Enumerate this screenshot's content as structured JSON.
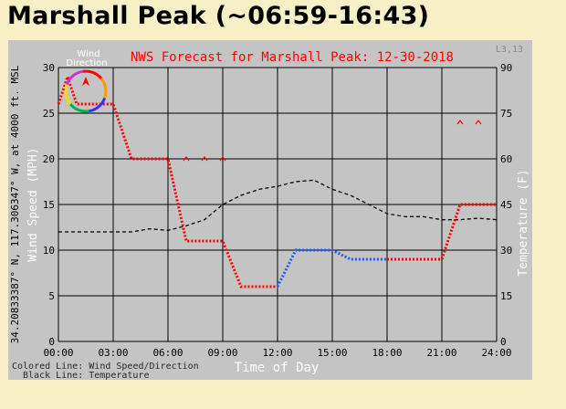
{
  "page": {
    "title": "Marshall Peak (~06:59-16:43)"
  },
  "chart_data": {
    "type": "line",
    "title": "NWS Forecast for Marshall Peak: 12-30-2018",
    "corner_label": "L3,13",
    "xlabel": "Time of Day",
    "ylabel_left": "Wind Speed (MPH)",
    "ylabel_location": "34.20833387° N, 117.306347° W, at 4000 ft. MSL",
    "ylabel_right": "Temperature (F)",
    "xlim": [
      0,
      24
    ],
    "ylim_left": [
      0,
      30
    ],
    "ylim_right": [
      0,
      90
    ],
    "x_ticks": [
      "00:00",
      "03:00",
      "06:00",
      "09:00",
      "12:00",
      "15:00",
      "18:00",
      "21:00",
      "24:00"
    ],
    "y_ticks_left": [
      "0",
      "5",
      "10",
      "15",
      "20",
      "25",
      "30"
    ],
    "y_ticks_right": [
      "0",
      "15",
      "30",
      "45",
      "60",
      "75",
      "90"
    ],
    "grid": true,
    "legend_lines": [
      "Colored Line: Wind Speed/Direction",
      "Black Line: Temperature"
    ],
    "wind_direction_label": [
      "Wind",
      "Direction"
    ],
    "series": [
      {
        "name": "Wind Speed/Direction",
        "segments": [
          {
            "color": "#ff0000",
            "x": [
              0,
              0.5,
              1,
              3,
              4,
              6,
              7,
              9,
              10,
              12
            ],
            "y": [
              26,
              29,
              26,
              26,
              20,
              20,
              11,
              11,
              6,
              6
            ]
          },
          {
            "color": "#1e5aff",
            "x": [
              12,
              13,
              15,
              16,
              18
            ],
            "y": [
              6,
              10,
              10,
              9,
              9
            ]
          },
          {
            "color": "#ff0000",
            "x": [
              18,
              21,
              22,
              24
            ],
            "y": [
              9,
              9,
              15,
              15
            ]
          }
        ]
      },
      {
        "name": "Temperature",
        "color": "#000000",
        "x": [
          0,
          1,
          2,
          3,
          4,
          5,
          6,
          7,
          8,
          9,
          10,
          11,
          12,
          13,
          14,
          15,
          16,
          17,
          18,
          19,
          20,
          21,
          22,
          23,
          24
        ],
        "y": [
          36,
          36,
          36,
          36,
          36,
          37,
          36.5,
          38,
          40,
          45,
          48,
          50,
          51,
          52.5,
          53,
          50,
          48,
          45,
          42,
          41,
          41,
          40,
          40,
          40.5,
          40
        ]
      }
    ],
    "gust_markers": [
      {
        "x": 7,
        "y": 20
      },
      {
        "x": 8,
        "y": 20
      },
      {
        "x": 9,
        "y": 20
      },
      {
        "x": 22,
        "y": 24
      },
      {
        "x": 23,
        "y": 24
      }
    ],
    "colors": {
      "title": "#ff0000",
      "axis_text": "#000000",
      "axis_label": "#ffffff",
      "plot_bg": "#c4c4c4",
      "grid": "#000000"
    }
  }
}
